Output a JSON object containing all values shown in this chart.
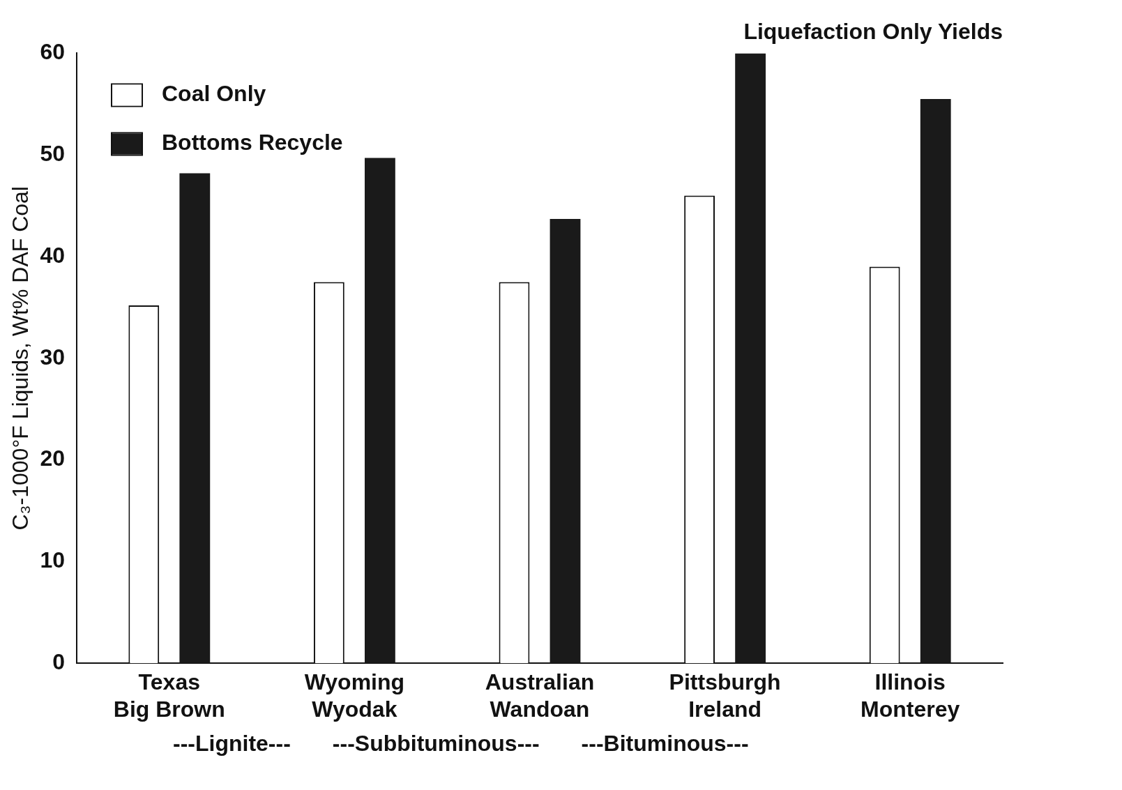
{
  "chart_data": {
    "type": "bar",
    "title": "Liquefaction Only Yields",
    "ylabel": "C₃-1000°F Liquids, Wt% DAF Coal",
    "categories": [
      "Texas\nBig Brown",
      "Wyoming\nWyodak",
      "Australian\nWandoan",
      "Pittsburgh\nIreland",
      "Illinois\nMonterey"
    ],
    "series": [
      {
        "name": "Coal Only",
        "color": "#ffffff",
        "values": [
          35.2,
          37.5,
          37.5,
          46,
          39
        ]
      },
      {
        "name": "Bottoms Recycle",
        "color": "#1a1a1a",
        "values": [
          48.2,
          49.7,
          43.7,
          60,
          55.5
        ]
      }
    ],
    "ylim": [
      0,
      60
    ],
    "yticks": [
      0,
      10,
      20,
      30,
      40,
      50,
      60
    ],
    "grid": false,
    "legend": "top left",
    "annotations": [
      "---Lignite---",
      "---Subbituminous---",
      "---Bituminous---"
    ]
  }
}
